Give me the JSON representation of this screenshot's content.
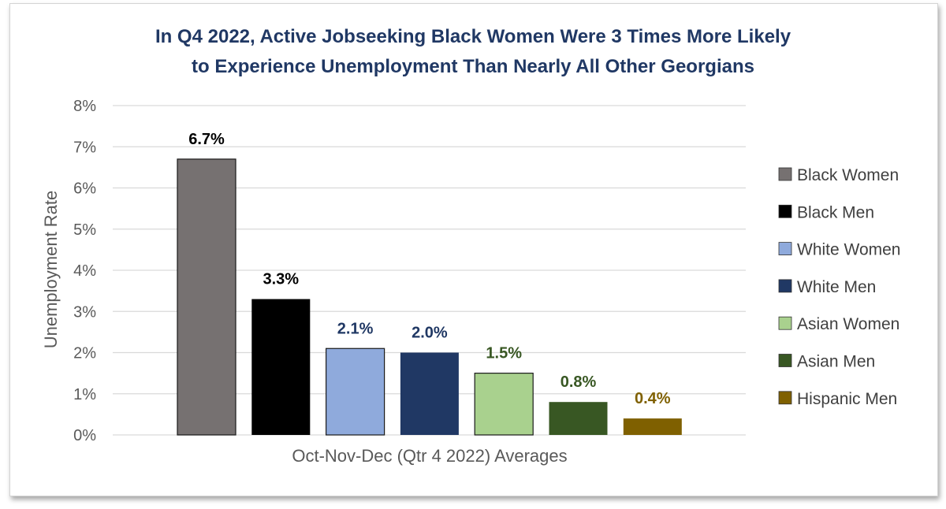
{
  "chart_data": {
    "type": "bar",
    "title_lines": [
      "In Q4 2022, Active Jobseeking Black Women Were 3 Times More Likely",
      "to Experience Unemployment Than Nearly All Other Georgians"
    ],
    "xlabel": "Oct-Nov-Dec (Qtr 4 2022) Averages",
    "ylabel": "Unemployment Rate",
    "ylim": [
      0,
      8
    ],
    "yticks": [
      "0%",
      "1%",
      "2%",
      "3%",
      "4%",
      "5%",
      "6%",
      "7%",
      "8%"
    ],
    "grid": true,
    "legend_position": "right",
    "series": [
      {
        "name": "Black Women",
        "value": 6.7,
        "label": "6.7%",
        "color": "#767171",
        "label_color": "#000000"
      },
      {
        "name": "Black Men",
        "value": 3.3,
        "label": "3.3%",
        "color": "#000000",
        "label_color": "#000000"
      },
      {
        "name": "White Women",
        "value": 2.1,
        "label": "2.1%",
        "color": "#8faadc",
        "label_color": "#203864"
      },
      {
        "name": "White Men",
        "value": 2.0,
        "label": "2.0%",
        "color": "#203864",
        "label_color": "#203864"
      },
      {
        "name": "Asian Women",
        "value": 1.5,
        "label": "1.5%",
        "color": "#a9d18e",
        "label_color": "#385723"
      },
      {
        "name": "Asian Men",
        "value": 0.8,
        "label": "0.8%",
        "color": "#385723",
        "label_color": "#385723"
      },
      {
        "name": "Hispanic Men",
        "value": 0.4,
        "label": "0.4%",
        "color": "#7f6000",
        "label_color": "#7f6000"
      }
    ]
  }
}
